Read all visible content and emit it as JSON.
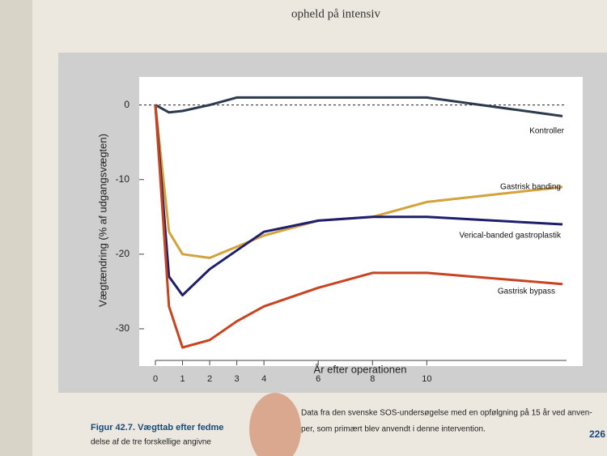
{
  "header_text": "opheld på intensiv",
  "chart_data": {
    "type": "line",
    "x": [
      0,
      0.5,
      1,
      2,
      3,
      4,
      6,
      8,
      10,
      15
    ],
    "series": [
      {
        "name": "Kontroller",
        "color": "#2b3a4c",
        "values": [
          0,
          -1,
          -0.8,
          0,
          1,
          1,
          1,
          1,
          1,
          -1.5
        ]
      },
      {
        "name": "Gastrisk banding",
        "color": "#d4a23a",
        "values": [
          0,
          -17,
          -20,
          -20.5,
          -19,
          -17.5,
          -15.5,
          -15,
          -13,
          -11
        ]
      },
      {
        "name": "Verical-banded gastroplastik",
        "color": "#1e1e6e",
        "values": [
          0,
          -23,
          -25.5,
          -22,
          -19.5,
          -17,
          -15.5,
          -15,
          -15,
          -16
        ]
      },
      {
        "name": "Gastrisk bypass",
        "color": "#c8431f",
        "values": [
          0,
          -27,
          -32.5,
          -31.5,
          -29,
          -27,
          -24.5,
          -22.5,
          -22.5,
          -24
        ]
      }
    ],
    "x_label": "År efter operationen",
    "y_label": "Vægtændring (% af udgangsvægten)",
    "xlim": [
      0,
      15
    ],
    "xticks": [
      0,
      1,
      2,
      3,
      4,
      6,
      8,
      10
    ],
    "ylim": [
      -35,
      3
    ],
    "yticks": [
      -30,
      -20,
      -10,
      0
    ]
  },
  "caption": {
    "label": "Figur 42.7. Vægttab efter fedme",
    "line1": "Data fra den svenske SOS-undersøgelse med en opfølgning på 15 år ved anven-",
    "line2a": "delse af de tre forskellige angivne",
    "line2b": "per, som primært blev anvendt i denne intervention."
  },
  "page_number": "226"
}
